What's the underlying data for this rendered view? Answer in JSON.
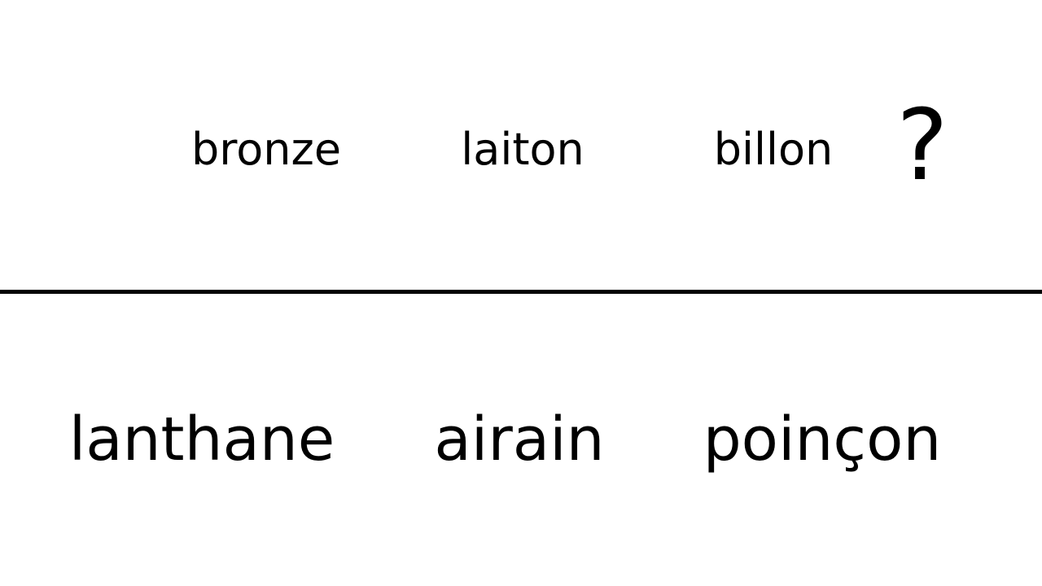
{
  "top_row": {
    "words": [
      "bronze",
      "laiton",
      "billon"
    ],
    "question_mark": "?"
  },
  "bottom_row": {
    "words": [
      "lanthane",
      "airain",
      "poinçon"
    ]
  }
}
